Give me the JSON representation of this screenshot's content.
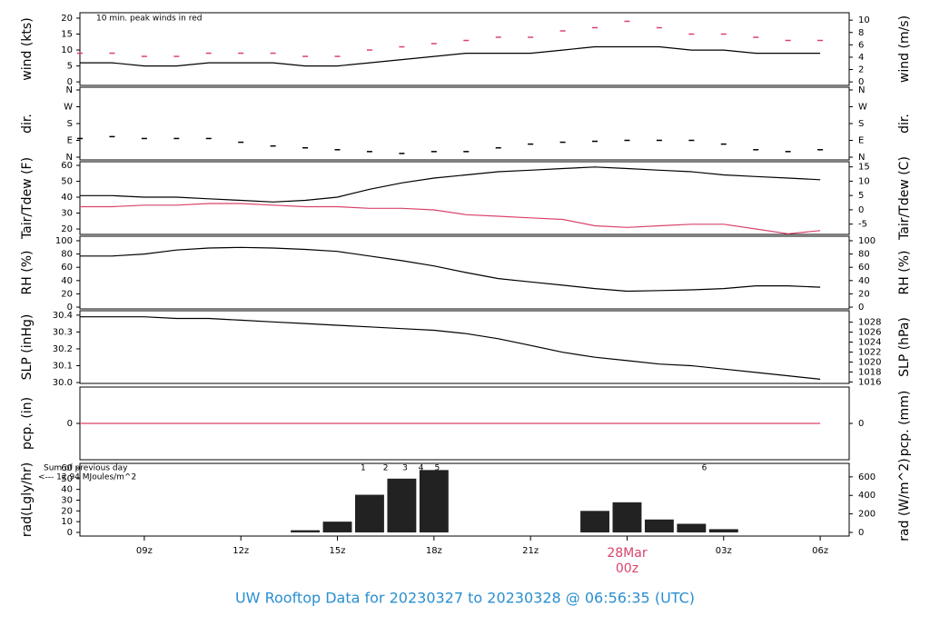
{
  "title": "UW Rooftop Data for 20230327  to  20230328 @ 06:56:35  (UTC)",
  "chart_data": [
    {
      "type": "line",
      "ylabel": "wind (kts)",
      "y2label": "wind (m/s)",
      "annotation": "10 min. peak winds in red",
      "annotation_color": "#d9436b",
      "x": [
        7,
        8,
        9,
        10,
        11,
        12,
        13,
        14,
        15,
        16,
        17,
        18,
        19,
        20,
        21,
        22,
        23,
        24,
        25,
        26,
        27,
        28,
        29,
        30
      ],
      "xlim": [
        7,
        30.9
      ],
      "ylim": [
        -1.1,
        21.7
      ],
      "yticks": [
        0,
        5,
        10,
        15,
        20
      ],
      "y2lim": [
        -0.57,
        11.2
      ],
      "y2ticks": [
        0,
        2,
        4,
        6,
        8,
        10
      ],
      "series": [
        {
          "color": "#000000",
          "values": [
            6,
            6,
            5,
            5,
            6,
            6,
            6,
            5,
            5,
            6,
            7,
            8,
            9,
            9,
            9,
            10,
            11,
            11,
            11,
            10,
            10,
            9,
            9,
            9
          ]
        },
        {
          "color": "#d9436b",
          "style": "points",
          "values": [
            9,
            9,
            8,
            8,
            9,
            9,
            9,
            8,
            8,
            10,
            11,
            12,
            13,
            14,
            14,
            16,
            17,
            19,
            17,
            15,
            15,
            14,
            13,
            13
          ]
        }
      ]
    },
    {
      "type": "scatter",
      "ylabel": "dir.",
      "y2label": "dir.",
      "x": [
        7,
        8,
        9,
        10,
        11,
        12,
        13,
        14,
        15,
        16,
        17,
        18,
        19,
        20,
        21,
        22,
        23,
        24,
        25,
        26,
        27,
        28,
        29,
        30
      ],
      "xlim": [
        7,
        30.9
      ],
      "ylim": [
        -14.6,
        374.6
      ],
      "yticks": [
        {
          "value": 0,
          "label": "N"
        },
        {
          "value": 90,
          "label": "E"
        },
        {
          "value": 180,
          "label": "S"
        },
        {
          "value": 270,
          "label": "W"
        },
        {
          "value": 360,
          "label": "N"
        }
      ],
      "y2lim": [
        -14.6,
        374.6
      ],
      "y2ticks": [
        {
          "value": 0,
          "label": "N"
        },
        {
          "value": 90,
          "label": "E"
        },
        {
          "value": 180,
          "label": "S"
        },
        {
          "value": 270,
          "label": "W"
        },
        {
          "value": 360,
          "label": "N"
        }
      ],
      "series": [
        {
          "color": "#000000",
          "values": [
            100,
            110,
            100,
            100,
            100,
            80,
            60,
            50,
            40,
            30,
            20,
            30,
            30,
            50,
            70,
            80,
            85,
            90,
            90,
            90,
            70,
            40,
            30,
            40
          ]
        }
      ]
    },
    {
      "type": "line",
      "ylabel": "Tair/Tdew (F)",
      "y2label": "Tair/Tdew (C)",
      "x": [
        7,
        8,
        9,
        10,
        11,
        12,
        13,
        14,
        15,
        16,
        17,
        18,
        19,
        20,
        21,
        22,
        23,
        24,
        25,
        26,
        27,
        28,
        29,
        30
      ],
      "xlim": [
        7,
        30.9
      ],
      "ylim": [
        16.6,
        62.3
      ],
      "yticks": [
        20,
        30,
        40,
        50,
        60
      ],
      "y2lim": [
        -8.6,
        16.8
      ],
      "y2ticks": [
        -5,
        0,
        5,
        10,
        15
      ],
      "series": [
        {
          "color": "#000000",
          "values": [
            41,
            41,
            40,
            40,
            39,
            38,
            37,
            38,
            40,
            45,
            49,
            52,
            54,
            56,
            57,
            58,
            59,
            58,
            57,
            56,
            54,
            53,
            52,
            51
          ]
        },
        {
          "color": "#d9436b",
          "values": [
            34,
            34,
            35,
            35,
            36,
            36,
            35,
            34,
            34,
            33,
            33,
            32,
            29,
            28,
            27,
            26,
            22,
            21,
            22,
            23,
            23,
            20,
            17,
            19
          ]
        }
      ]
    },
    {
      "type": "line",
      "ylabel": "RH (%)",
      "y2label": "RH (%)",
      "x": [
        7,
        8,
        9,
        10,
        11,
        12,
        13,
        14,
        15,
        16,
        17,
        18,
        19,
        20,
        21,
        22,
        23,
        24,
        25,
        26,
        27,
        28,
        29,
        30
      ],
      "xlim": [
        7,
        30.9
      ],
      "ylim": [
        -2.7,
        106.8
      ],
      "yticks": [
        0,
        20,
        40,
        60,
        80,
        100
      ],
      "y2lim": [
        -2.7,
        106.8
      ],
      "y2ticks": [
        0,
        20,
        40,
        60,
        80,
        100
      ],
      "series": [
        {
          "color": "#000000",
          "values": [
            77,
            77,
            80,
            86,
            89,
            90,
            89,
            87,
            84,
            77,
            70,
            62,
            52,
            43,
            38,
            33,
            28,
            24,
            25,
            26,
            28,
            32,
            32,
            30
          ]
        }
      ]
    },
    {
      "type": "line",
      "ylabel": "SLP (inHg)",
      "y2label": "SLP (hPa)",
      "x": [
        7,
        8,
        9,
        10,
        11,
        12,
        13,
        14,
        15,
        16,
        17,
        18,
        19,
        20,
        21,
        22,
        23,
        24,
        25,
        26,
        27,
        28,
        29,
        30
      ],
      "xlim": [
        7,
        30.9
      ],
      "ylim": [
        29.995,
        30.426
      ],
      "yticks": [
        {
          "value": 30,
          "label": "30.0"
        },
        30.1,
        30.2,
        30.3,
        30.4
      ],
      "y2lim": [
        1015.7,
        1030.3
      ],
      "y2ticks": [
        1016,
        1018,
        1020,
        1022,
        1024,
        1026,
        1028
      ],
      "series": [
        {
          "color": "#000000",
          "values": [
            30.39,
            30.39,
            30.39,
            30.38,
            30.38,
            30.37,
            30.36,
            30.35,
            30.34,
            30.33,
            30.32,
            30.31,
            30.29,
            30.26,
            30.22,
            30.18,
            30.15,
            30.13,
            30.11,
            30.1,
            30.08,
            30.06,
            30.04,
            30.02
          ]
        }
      ]
    },
    {
      "type": "line",
      "ylabel": "pcp. (in)",
      "y2label": "pcp. (mm)",
      "x": [
        7,
        8,
        9,
        10,
        11,
        12,
        13,
        14,
        15,
        16,
        17,
        18,
        19,
        20,
        21,
        22,
        23,
        24,
        25,
        26,
        27,
        28,
        29,
        30
      ],
      "xlim": [
        7,
        30.9
      ],
      "ylim": [
        -0.1,
        0.1
      ],
      "yticks": [
        0
      ],
      "y2lim": [
        -2.54,
        2.54
      ],
      "y2ticks": [
        0
      ],
      "series": [
        {
          "color": "#d9436b",
          "values": [
            0,
            0,
            0,
            0,
            0,
            0,
            0,
            0,
            0,
            0,
            0,
            0,
            0,
            0,
            0,
            0,
            0,
            0,
            0,
            0,
            0,
            0,
            0,
            0
          ]
        }
      ]
    },
    {
      "type": "bar",
      "ylabel": "rad(Lgly/hr)",
      "y2label": "rad (W/m^2)",
      "notes": [
        "Sum of previous day",
        "<--- 12.94 MJoules/m^2"
      ],
      "note_color": "#9b30d9",
      "markers": [
        {
          "x": 15.8,
          "text": "1"
        },
        {
          "x": 16.5,
          "text": "2"
        },
        {
          "x": 17.1,
          "text": "3"
        },
        {
          "x": 17.6,
          "text": "4"
        },
        {
          "x": 18.1,
          "text": "5"
        },
        {
          "x": 26.4,
          "text": "6"
        }
      ],
      "x": [
        7,
        8,
        9,
        10,
        11,
        12,
        13,
        14,
        15,
        16,
        17,
        18,
        19,
        20,
        21,
        22,
        23,
        24,
        25,
        26,
        27,
        28,
        29,
        30
      ],
      "xlim": [
        7,
        30.9
      ],
      "ylim": [
        -3.4,
        64.2
      ],
      "yticks": [
        0,
        10,
        20,
        30,
        40,
        50,
        60
      ],
      "y2lim": [
        -39.5,
        746
      ],
      "y2ticks": [
        0,
        200,
        400,
        600
      ],
      "xticks": [
        {
          "value": 9,
          "label": "09z"
        },
        {
          "value": 12,
          "label": "12z"
        },
        {
          "value": 15,
          "label": "15z"
        },
        {
          "value": 18,
          "label": "18z"
        },
        {
          "value": 21,
          "label": "21z"
        },
        {
          "value": 24,
          "label": "00z"
        },
        {
          "value": 27,
          "label": "03z"
        },
        {
          "value": 30,
          "label": "06z"
        }
      ],
      "date_label": "28Mar",
      "date_color": "#d9436b",
      "series": [
        {
          "color": "#222222",
          "values": [
            0,
            0,
            0,
            0,
            0,
            0,
            0,
            2,
            10,
            35,
            50,
            58,
            null,
            null,
            null,
            null,
            20,
            28,
            12,
            8,
            3,
            0,
            0,
            0
          ]
        }
      ]
    }
  ]
}
